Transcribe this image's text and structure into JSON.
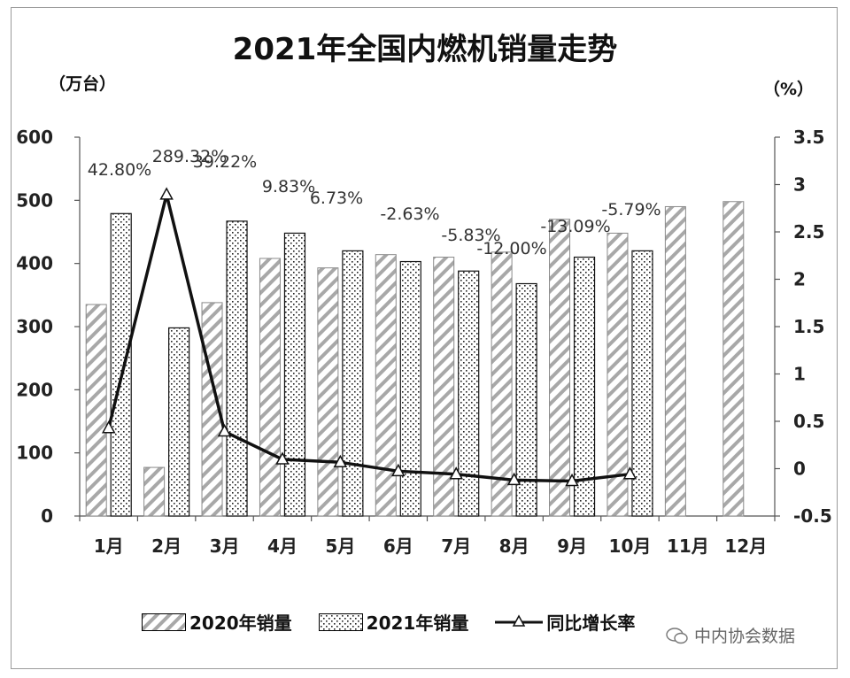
{
  "chart_data": {
    "type": "bar",
    "title": "2021年全国内燃机销量走势",
    "left_axis_unit": "（万台）",
    "right_axis_unit": "（%）",
    "categories": [
      "1月",
      "2月",
      "3月",
      "4月",
      "5月",
      "6月",
      "7月",
      "8月",
      "9月",
      "10月",
      "11月",
      "12月"
    ],
    "y_left_lim": [
      0,
      600
    ],
    "y_left_ticks": [
      "0",
      "100",
      "200",
      "300",
      "400",
      "500",
      "600"
    ],
    "y_right_lim": [
      -0.5,
      3.5
    ],
    "y_right_ticks": [
      "-0.5",
      "0",
      "0.5",
      "1",
      "1.5",
      "2",
      "2.5",
      "3",
      "3.5"
    ],
    "series": [
      {
        "name": "2020年销量",
        "kind": "bar",
        "pattern": "diagonal-hatch",
        "values": [
          335,
          77,
          338,
          408,
          393,
          414,
          410,
          418,
          470,
          448,
          490,
          498
        ]
      },
      {
        "name": "2021年销量",
        "kind": "bar",
        "pattern": "dots",
        "values": [
          479,
          298,
          467,
          448,
          420,
          403,
          388,
          368,
          410,
          420,
          null,
          null
        ]
      },
      {
        "name": "同比增长率",
        "kind": "line",
        "axis": "right",
        "marker": "triangle",
        "values": [
          0.428,
          2.8932,
          0.3922,
          0.0983,
          0.0673,
          -0.0263,
          -0.0583,
          -0.12,
          -0.1309,
          -0.0579,
          null,
          null
        ],
        "labels": [
          "42.80%",
          "289.32%",
          "39.22%",
          "9.83%",
          "6.73%",
          "-2.63%",
          "-5.83%",
          "-12.00%",
          "-13.09%",
          "-5.79%",
          "",
          ""
        ]
      }
    ],
    "xlabel": "",
    "ylabel": "",
    "grid": false,
    "legend_position": "bottom"
  },
  "watermark": {
    "text": "中内协会数据",
    "icon": "wechat-icon"
  }
}
